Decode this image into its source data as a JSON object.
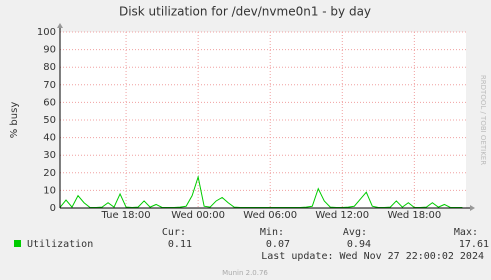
{
  "chart_data": {
    "type": "line",
    "title": "Disk utilization for /dev/nvme0n1 - by day",
    "y_label": "% busy",
    "watermark": "RRDTOOL / TOBI OETIKER",
    "x": [
      12.5,
      13,
      13.5,
      14,
      14.5,
      15,
      15.5,
      16,
      16.5,
      17,
      17.5,
      18,
      18.5,
      19,
      19.5,
      20,
      20.5,
      21,
      21.5,
      22,
      22.5,
      23,
      23.5,
      24,
      24.5,
      25,
      25.5,
      26,
      26.5,
      27,
      27.5,
      28,
      28.5,
      29,
      29.5,
      30,
      30.5,
      31,
      31.5,
      32,
      32.5,
      33,
      33.5,
      34,
      34.5,
      35,
      35.5,
      36,
      36.5,
      37,
      37.5,
      38,
      38.5,
      39,
      39.5,
      40,
      40.5,
      41,
      41.5,
      42,
      42.5,
      43,
      43.5,
      44,
      44.5,
      45,
      45.5,
      46
    ],
    "series": [
      {
        "name": "Utilization",
        "color": "#00cc00",
        "values": [
          0.3,
          4.5,
          0.5,
          7,
          3,
          0.3,
          0.3,
          0.5,
          3,
          0.5,
          8,
          0.5,
          0.3,
          0.5,
          4,
          0.5,
          2,
          0.3,
          0.3,
          0.3,
          0.5,
          1,
          7,
          17.6,
          1,
          0.5,
          4,
          6,
          3,
          0.5,
          0.3,
          0.3,
          0.3,
          0.3,
          0.3,
          0.3,
          0.3,
          0.3,
          0.3,
          0.3,
          0.3,
          0.5,
          1,
          11,
          4,
          0.5,
          0.3,
          0.3,
          0.5,
          1,
          5,
          9,
          1,
          0.3,
          0.3,
          0.5,
          4,
          0.5,
          3,
          0.3,
          0.3,
          0.5,
          3,
          0.5,
          2,
          0.3,
          0.3,
          0.3
        ]
      }
    ],
    "xlim": [
      12.5,
      46.3
    ],
    "xticks": [
      {
        "value": 18,
        "label": "Tue 18:00"
      },
      {
        "value": 24,
        "label": "Wed 00:00"
      },
      {
        "value": 30,
        "label": "Wed 06:00"
      },
      {
        "value": 36,
        "label": "Wed 12:00"
      },
      {
        "value": 42,
        "label": "Wed 18:00"
      }
    ],
    "ylim": [
      0,
      100
    ],
    "yticks": [
      0,
      10,
      20,
      30,
      40,
      50,
      60,
      70,
      80,
      90,
      100
    ],
    "grid": true,
    "summary": {
      "headers": [
        "Cur:",
        "Min:",
        "Avg:",
        "Max:"
      ],
      "values": [
        0.11,
        0.07,
        0.94,
        17.61
      ]
    },
    "last_update": "Last update: Wed Nov 27 22:00:02 2024",
    "footer": "Munin 2.0.76"
  }
}
